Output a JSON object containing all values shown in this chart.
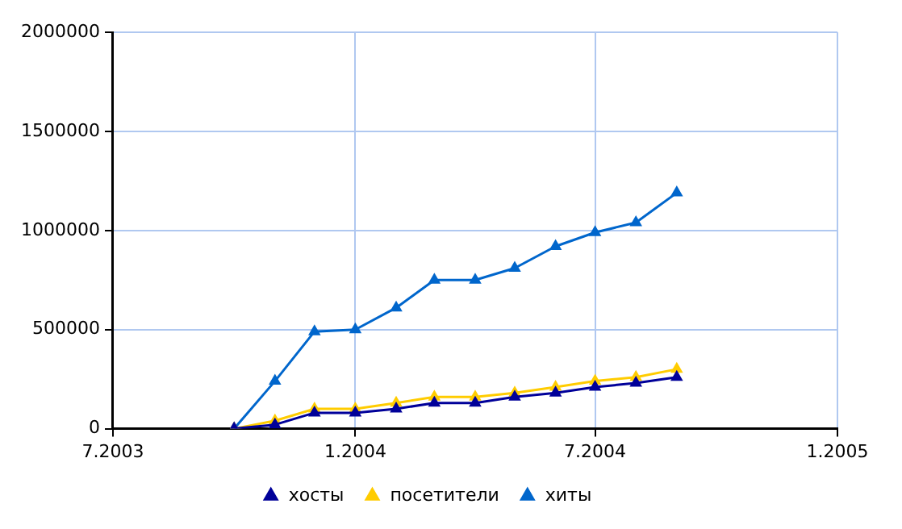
{
  "chart_data": {
    "type": "line",
    "x": [
      "2003-10",
      "2003-11",
      "2003-12",
      "2004-01",
      "2004-02",
      "2004-03",
      "2004-04",
      "2004-05",
      "2004-06",
      "2004-07",
      "2004-08",
      "2004-09"
    ],
    "series": [
      {
        "name": "хосты",
        "color": "#000099",
        "values": [
          0,
          20000,
          80000,
          80000,
          100000,
          130000,
          130000,
          160000,
          180000,
          210000,
          230000,
          260000
        ]
      },
      {
        "name": "посетители",
        "color": "#ffcc00",
        "values": [
          0,
          40000,
          100000,
          100000,
          130000,
          160000,
          160000,
          180000,
          210000,
          240000,
          260000,
          300000
        ]
      },
      {
        "name": "хиты",
        "color": "#0066cc",
        "values": [
          0,
          240000,
          490000,
          500000,
          610000,
          750000,
          750000,
          810000,
          920000,
          990000,
          1040000,
          1190000
        ]
      }
    ],
    "xlim": [
      "2003-07",
      "2005-01"
    ],
    "xticks": [
      {
        "value": "2003-07",
        "label": "7.2003"
      },
      {
        "value": "2004-01",
        "label": "1.2004"
      },
      {
        "value": "2004-07",
        "label": "7.2004"
      },
      {
        "value": "2005-01",
        "label": "1.2005"
      }
    ],
    "ylim": [
      0,
      2000000
    ],
    "yticks": [
      0,
      500000,
      1000000,
      1500000,
      2000000
    ],
    "grid": true,
    "legend": "bottom",
    "marker": "triangle",
    "line_style": "solid"
  }
}
